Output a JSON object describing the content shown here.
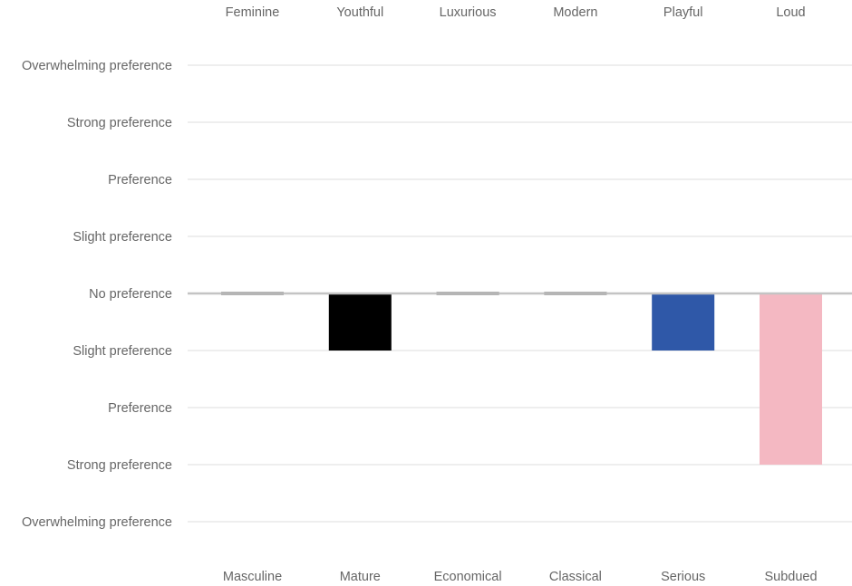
{
  "chart_data": {
    "type": "bar",
    "title": "",
    "xlabel": "",
    "ylabel": "",
    "top_categories": [
      "Feminine",
      "Youthful",
      "Luxurious",
      "Modern",
      "Playful",
      "Loud"
    ],
    "bottom_categories": [
      "Masculine",
      "Mature",
      "Economical",
      "Classical",
      "Serious",
      "Subdued"
    ],
    "y_ticks": [
      {
        "value": 4,
        "label": "Overwhelming preference"
      },
      {
        "value": 3,
        "label": "Strong preference"
      },
      {
        "value": 2,
        "label": "Preference"
      },
      {
        "value": 1,
        "label": "Slight preference"
      },
      {
        "value": 0,
        "label": "No preference"
      },
      {
        "value": -1,
        "label": "Slight preference"
      },
      {
        "value": -2,
        "label": "Preference"
      },
      {
        "value": -3,
        "label": "Strong preference"
      },
      {
        "value": -4,
        "label": "Overwhelming preference"
      }
    ],
    "ylim": [
      -4,
      4
    ],
    "grid": true,
    "values": [
      0,
      -1,
      0,
      0,
      -1,
      -3
    ],
    "bar_colors": [
      "#b5b5b5",
      "#000000",
      "#b5b5b5",
      "#b5b5b5",
      "#2f58a8",
      "#f4b8c2"
    ]
  }
}
